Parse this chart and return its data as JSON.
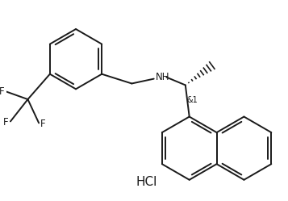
{
  "background_color": "#ffffff",
  "line_color": "#1a1a1a",
  "line_width": 1.4,
  "figsize": [
    3.57,
    2.49
  ],
  "dpi": 100,
  "hcl_label": "HCl",
  "stereo_label": "&1",
  "nh_label": "NH"
}
